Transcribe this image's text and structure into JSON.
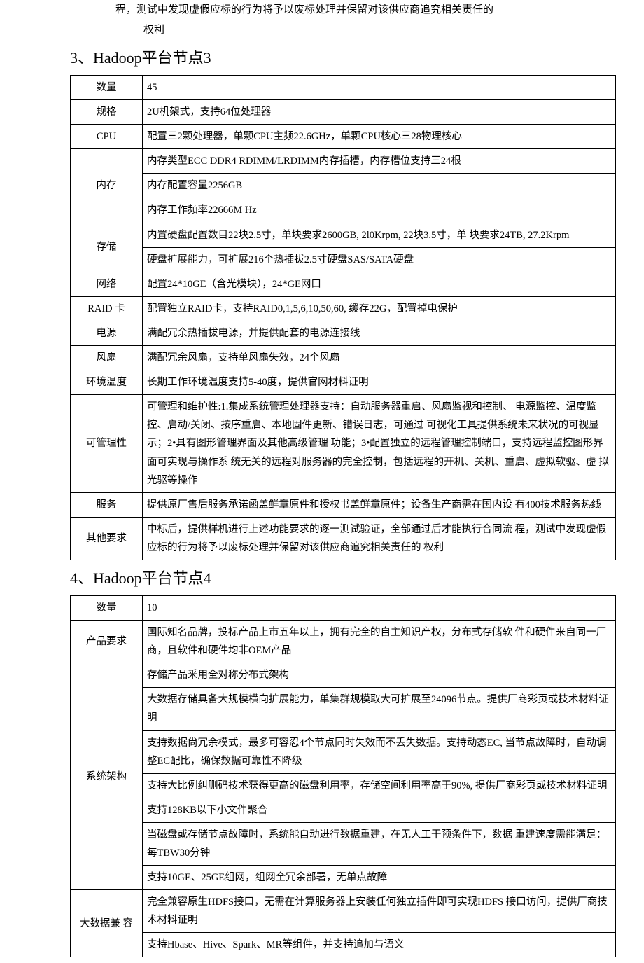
{
  "pre_text": {
    "line1": "程，测试中发现虚假应标的行为将予以废标处理并保留对该供应商追究相关责任的",
    "line2": "权利"
  },
  "section3": {
    "title_num": "3、",
    "title_text": "Hadoop平台节点3",
    "rows": {
      "qty_label": "数量",
      "qty_value": "45",
      "spec_label": "规格",
      "spec_value": "2U机架式，支持64位处理器",
      "cpu_label": "CPU",
      "cpu_value": "配置三2颗处理器，单颗CPU主频22.6GHz，单颗CPU核心三28物理核心",
      "mem_label": "内存",
      "mem_v1": "内存类型ECC DDR4 RDIMM/LRDIMM内存插槽，内存槽位支持三24根",
      "mem_v2": "内存配置容量2256GB",
      "mem_v3": "内存工作频率22666M Hz",
      "storage_label": "存储",
      "storage_v1": "内置硬盘配置数目22块2.5寸，单块要求2600GB, 2l0Krpm, 22块3.5寸，单 块要求24TB, 27.2Krpm",
      "storage_v2": "硬盘扩展能力，可扩展216个热插拔2.5寸硬盘SAS/SATA硬盘",
      "net_label": "网络",
      "net_value": "配置24*10GE（含光模块），24*GE网口",
      "raid_label": "RAID 卡",
      "raid_value": "配置独立RAID卡，支持RAID0,1,5,6,10,50,60, 缓存22G，配置掉电保护",
      "power_label": "电源",
      "power_value": "满配冗余热插拔电源，并提供配套的电源连接线",
      "fan_label": "风扇",
      "fan_value": "满配冗余风扇，支持单风扇失效，24个风扇",
      "env_label": "环境温度",
      "env_value": "长期工作环境温度支持5-40度，提供官网材料证明",
      "mgmt_label": "可管理性",
      "mgmt_value": "可管理和维护性:1.集成系统管理处理器支持：自动服务器重启、风扇监视和控制、 电源监控、温度监控、启动/关闭、按序重启、本地固件更新、错误日志，可通过 可视化工具提供系统未来状况的可视显示；2•具有图形管理界面及其他高级管理 功能；3•配置独立的远程管理控制端口，支持远程监控图形界面可实现与操作系 统无关的远程对服务器的完全控制，包括远程的开机、关机、重启、虚拟软驱、虚 拟光驱等操作",
      "svc_label": "服务",
      "svc_value": "提供原厂售后服务承诺函盖鲜章原件和授权书盖鲜章原件；设备生产商需在国内设 有400技术服务热线",
      "other_label": "其他要求",
      "other_value": "中标后，提供样机进行上述功能要求的逐一测试验证，全部通过后才能执行合同流 程，测试中发现虚假应标的行为将予以废标处理并保留对该供应商追究相关责任的 权利"
    }
  },
  "section4": {
    "title_num": "4、",
    "title_text": "Hadoop平台节点4",
    "rows": {
      "qty_label": "数量",
      "qty_value": "10",
      "prod_label": "产品要求",
      "prod_value": "国际知名品牌，投标产品上市五年以上，拥有完全的自主知识产权，分布式存储软 件和硬件来自同一厂商，且软件和硬件均非OEM产品",
      "arch_label": "系统架构",
      "arch_v1": "存储产品釆用全对称分布式架构",
      "arch_v2": "大数据存储具备大规模横向扩展能力，单集群规模取大可扩展至24096节点。提供厂商彩页或技术材料证明",
      "arch_v3": "支持数据尙冗余模式，最多可容忍4个节点同时失效而不丢失数据。支持动态EC, 当节点故障时，自动调整EC配比，确保数据可靠性不降级",
      "arch_v4": "支持大比例纠删码技术获得更高的磁盘利用率，存储空间利用率高于90%, 提供厂商彩页或技术材料证明",
      "arch_v5": "支持128KB以下小文件聚合",
      "arch_v6": "当磁盘或存储节点故障时，系统能自动进行数据重建，在无人工干预条件下，数据 重建速度需能满足：每TBW30分钟",
      "arch_v7": "支持10GE、25GE组网，组网全冗余部署，无单点故障",
      "compat_label": "大数据兼 容",
      "compat_v1": "完全兼容原生HDFS接口，无需在计算服务器上安装任何独立插件即可实现HDFS 接口访问，提供厂商技术材料证明",
      "compat_v2": "支持Hbase、Hive、Spark、MR等组件，并支持追加与语义"
    }
  }
}
